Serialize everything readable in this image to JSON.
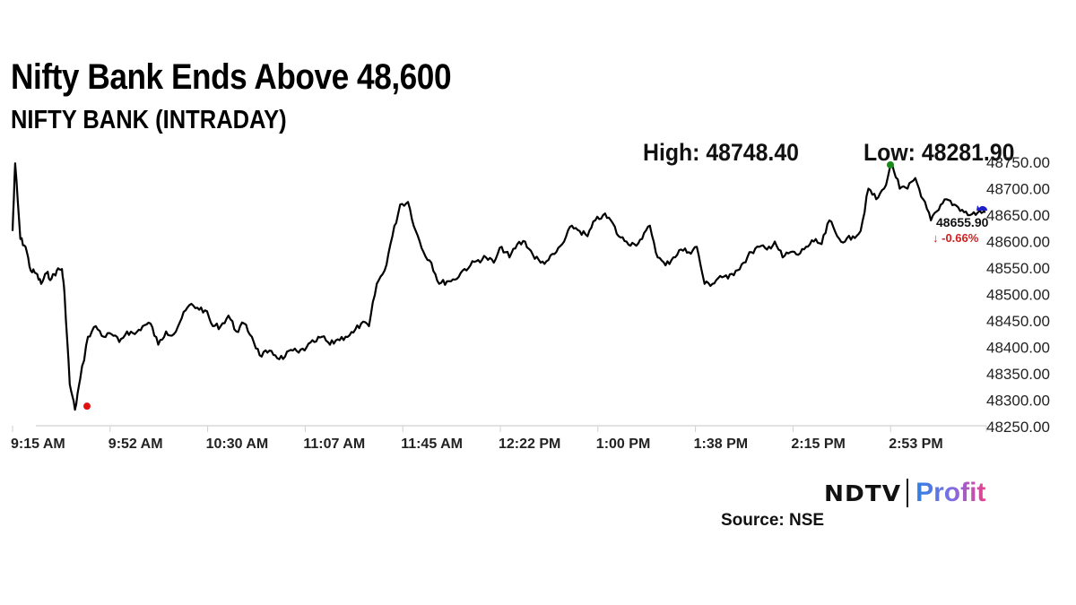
{
  "header": {
    "title": "Nifty Bank Ends Above 48,600",
    "subtitle": "NIFTY BANK (INTRADAY)"
  },
  "stats": {
    "high_label": "High: 48748.40",
    "low_label": "Low: 48281.90",
    "last_value": "48655.90",
    "change": "-0.66%",
    "change_arrow": "↓",
    "change_color": "#d21f1f"
  },
  "footer": {
    "brand_left": "NDTV",
    "brand_right": "Profit",
    "source": "Source: NSE"
  },
  "colors": {
    "line": "#000000",
    "high_marker": "#1a8a1a",
    "low_marker": "#e01010",
    "last_marker": "#1f1fc8",
    "axis": "#d9d9d9",
    "down": "#d21f1f"
  },
  "chart_data": {
    "type": "line",
    "title": "Nifty Bank Ends Above 48,600",
    "subtitle": "NIFTY BANK (INTRADAY)",
    "xlabel": "",
    "ylabel": "",
    "ylim": [
      48250,
      48750
    ],
    "y_ticks": [
      "48750.00",
      "48700.00",
      "48650.00",
      "48600.00",
      "48550.00",
      "48500.00",
      "48450.00",
      "48400.00",
      "48350.00",
      "48300.00",
      "48250.00"
    ],
    "x_ticks": [
      "9:15 AM",
      "9:52 AM",
      "10:30 AM",
      "11:07 AM",
      "11:45 AM",
      "12:22 PM",
      "1:00 PM",
      "1:38 PM",
      "2:15 PM",
      "2:53 PM"
    ],
    "grid": false,
    "legend": "none",
    "annotations": {
      "high": {
        "label": "High: 48748.40",
        "value": 48748.4,
        "time": "2:53 PM",
        "marker_color": "green"
      },
      "low": {
        "label": "Low: 48281.90",
        "value": 48281.9,
        "time": "9:37 AM",
        "marker_color": "red"
      },
      "last": {
        "value": 48655.9,
        "change_pct": -0.66
      }
    },
    "series": [
      {
        "name": "NIFTY BANK",
        "x": [
          "9:15",
          "9:16",
          "9:18",
          "9:20",
          "9:22",
          "9:24",
          "9:26",
          "9:28",
          "9:30",
          "9:32",
          "9:34",
          "9:35",
          "9:37",
          "9:39",
          "9:41",
          "9:44",
          "9:47",
          "9:50",
          "9:53",
          "9:56",
          "9:59",
          "10:02",
          "10:05",
          "10:08",
          "10:11",
          "10:14",
          "10:17",
          "10:20",
          "10:23",
          "10:26",
          "10:29",
          "10:32",
          "10:35",
          "10:38",
          "10:41",
          "10:44",
          "10:47",
          "10:50",
          "10:53",
          "10:56",
          "10:59",
          "11:02",
          "11:05",
          "11:08",
          "11:11",
          "11:14",
          "11:17",
          "11:20",
          "11:23",
          "11:26",
          "11:29",
          "11:32",
          "11:35",
          "11:38",
          "11:41",
          "11:44",
          "11:47",
          "11:50",
          "11:53",
          "11:56",
          "11:59",
          "12:02",
          "12:05",
          "12:08",
          "12:11",
          "12:14",
          "12:17",
          "12:20",
          "12:23",
          "12:26",
          "12:29",
          "12:32",
          "12:35",
          "12:38",
          "12:41",
          "12:44",
          "12:47",
          "12:50",
          "12:53",
          "12:56",
          "12:59",
          "13:02",
          "13:05",
          "13:08",
          "13:11",
          "13:14",
          "13:17",
          "13:20",
          "13:23",
          "13:26",
          "13:29",
          "13:32",
          "13:35",
          "13:38",
          "13:41",
          "13:44",
          "13:47",
          "13:50",
          "13:53",
          "13:56",
          "13:59",
          "14:02",
          "14:05",
          "14:08",
          "14:11",
          "14:14",
          "14:17",
          "14:20",
          "14:23",
          "14:26",
          "14:29",
          "14:32",
          "14:35",
          "14:38",
          "14:41",
          "14:44",
          "14:47",
          "14:50",
          "14:53",
          "14:56",
          "14:59",
          "15:02",
          "15:05",
          "15:08",
          "15:11",
          "15:14",
          "15:17",
          "15:20",
          "15:23",
          "15:26",
          "15:29"
        ],
        "values": [
          48620,
          48748,
          48605,
          48590,
          48545,
          48540,
          48520,
          48540,
          48530,
          48545,
          48548,
          48500,
          48330,
          48282,
          48340,
          48420,
          48440,
          48420,
          48425,
          48410,
          48430,
          48425,
          48440,
          48445,
          48405,
          48430,
          48425,
          48455,
          48480,
          48475,
          48470,
          48440,
          48440,
          48460,
          48430,
          48445,
          48420,
          48385,
          48390,
          48385,
          48378,
          48395,
          48390,
          48400,
          48410,
          48420,
          48405,
          48415,
          48420,
          48428,
          48445,
          48440,
          48520,
          48545,
          48610,
          48670,
          48675,
          48620,
          48580,
          48560,
          48520,
          48525,
          48528,
          48545,
          48555,
          48565,
          48570,
          48560,
          48590,
          48570,
          48595,
          48600,
          48575,
          48560,
          48565,
          48580,
          48600,
          48630,
          48620,
          48610,
          48640,
          48650,
          48640,
          48610,
          48600,
          48595,
          48605,
          48630,
          48570,
          48555,
          48570,
          48585,
          48580,
          48590,
          48520,
          48520,
          48535,
          48530,
          48545,
          48560,
          48580,
          48590,
          48585,
          48600,
          48570,
          48580,
          48575,
          48590,
          48600,
          48595,
          48640,
          48610,
          48600,
          48610,
          48620,
          48700,
          48680,
          48700,
          48748,
          48700,
          48700,
          48720,
          48680,
          48640,
          48660,
          48680,
          48670,
          48660,
          48650,
          48655,
          48656
        ]
      }
    ]
  }
}
